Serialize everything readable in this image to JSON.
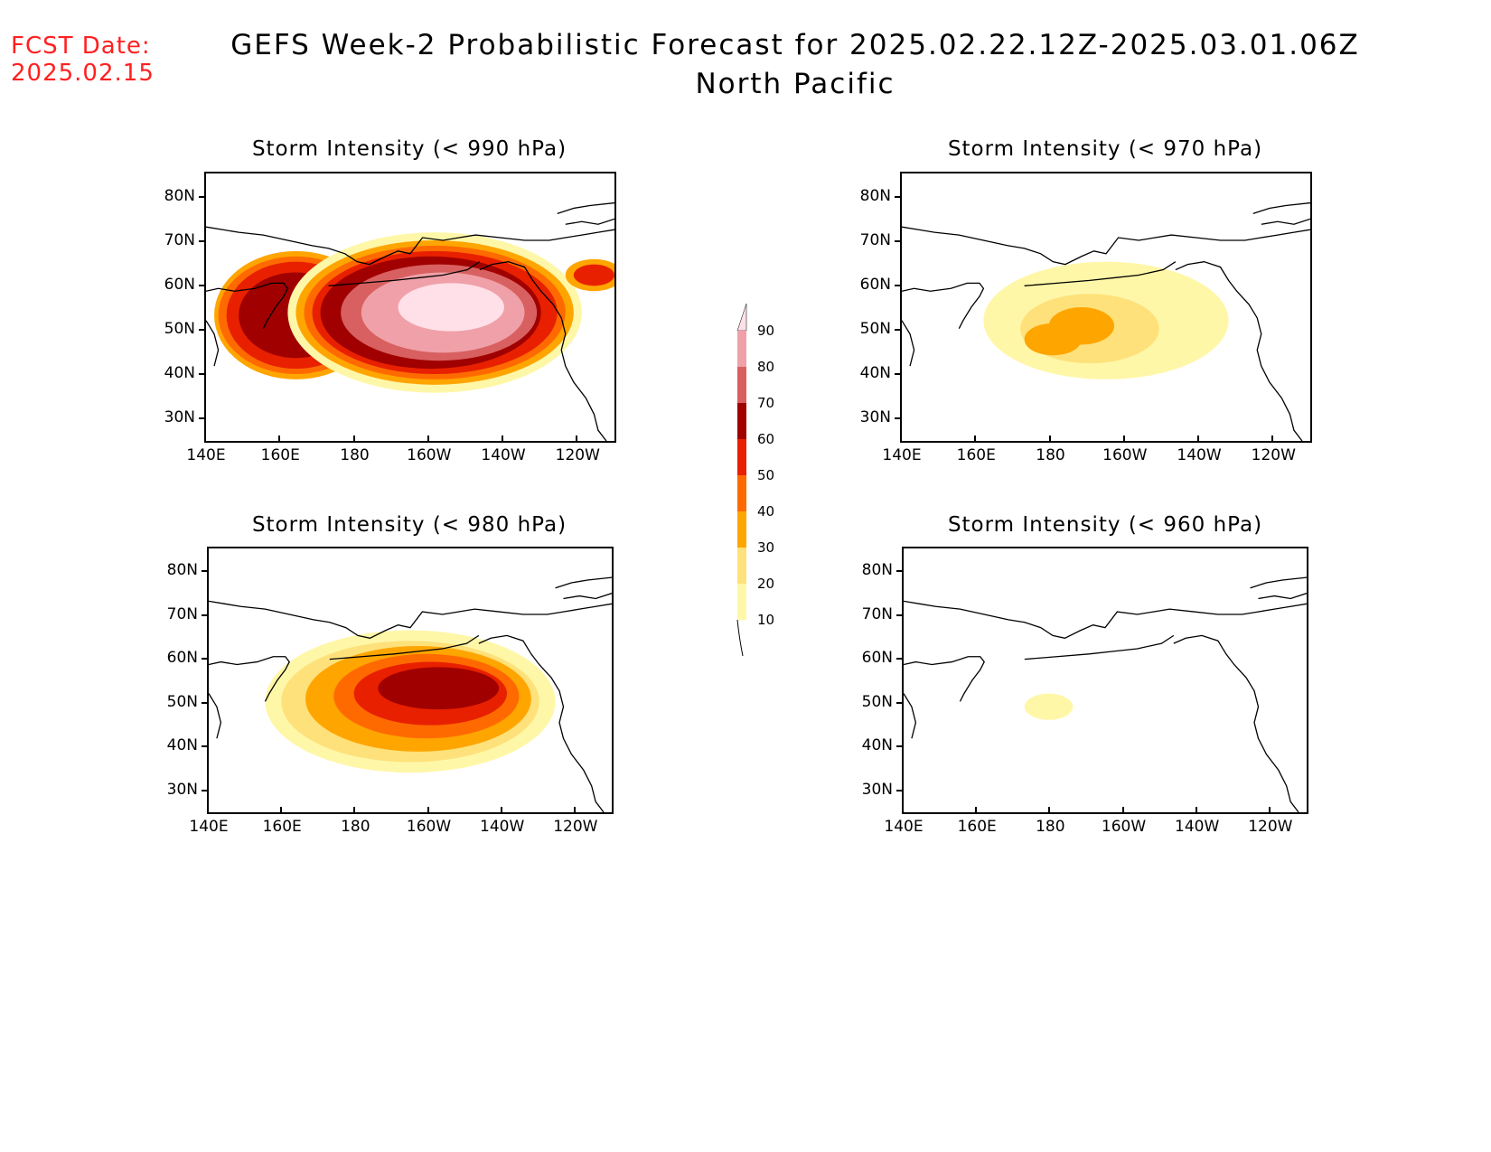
{
  "header": {
    "fcst_label": "FCST Date:",
    "fcst_date": "2025.02.15",
    "title_line1": "GEFS Week-2 Probabilistic Forecast for 2025.02.22.12Z-2025.03.01.06Z",
    "title_line2": "North Pacific"
  },
  "axes": {
    "lat_labels": [
      "80N",
      "70N",
      "60N",
      "50N",
      "40N",
      "30N"
    ],
    "lon_labels": [
      "140E",
      "160E",
      "180",
      "160W",
      "140W",
      "120W"
    ]
  },
  "panels": [
    {
      "title": "Storm Intensity (< 990 hPa)",
      "threshold_hPa": 990,
      "max_probability": 90
    },
    {
      "title": "Storm Intensity (< 970 hPa)",
      "threshold_hPa": 970,
      "max_probability": 40
    },
    {
      "title": "Storm Intensity (< 980 hPa)",
      "threshold_hPa": 980,
      "max_probability": 70
    },
    {
      "title": "Storm Intensity (< 960 hPa)",
      "threshold_hPa": 960,
      "max_probability": 20
    }
  ],
  "colorbar": {
    "levels": [
      "10",
      "20",
      "30",
      "40",
      "50",
      "60",
      "70",
      "80",
      "90"
    ],
    "colors": [
      "#fff7a8",
      "#fee17a",
      "#ffa500",
      "#ff6a00",
      "#e82000",
      "#a00000",
      "#d86060",
      "#f0a0a8",
      "#ffe0e8"
    ]
  }
}
